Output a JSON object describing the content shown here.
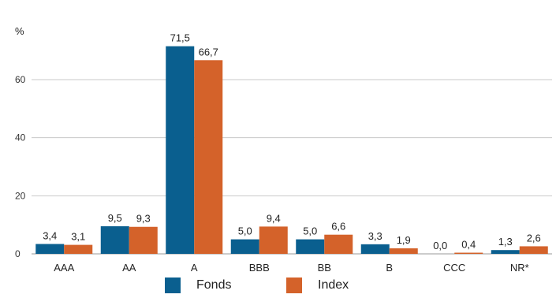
{
  "chart_data": {
    "type": "bar",
    "unit_label": "%",
    "categories": [
      "AAA",
      "AA",
      "A",
      "BBB",
      "BB",
      "B",
      "CCC",
      "NR*"
    ],
    "series": [
      {
        "name": "Fonds",
        "color": "#0a5f8f",
        "values": [
          3.4,
          9.5,
          71.5,
          5.0,
          5.0,
          3.3,
          0.0,
          1.3
        ],
        "labels": [
          "3,4",
          "9,5",
          "71,5",
          "5,0",
          "5,0",
          "3,3",
          "0,0",
          "1,3"
        ]
      },
      {
        "name": "Index",
        "color": "#d4622a",
        "values": [
          3.1,
          9.3,
          66.7,
          9.4,
          6.6,
          1.9,
          0.4,
          2.6
        ],
        "labels": [
          "3,1",
          "9,3",
          "66,7",
          "9,4",
          "6,6",
          "1,9",
          "0,4",
          "2,6"
        ]
      }
    ],
    "yticks": [
      0,
      20,
      40,
      60
    ],
    "ylim": [
      0,
      75
    ],
    "grid": true,
    "legend_position": "bottom-center"
  }
}
